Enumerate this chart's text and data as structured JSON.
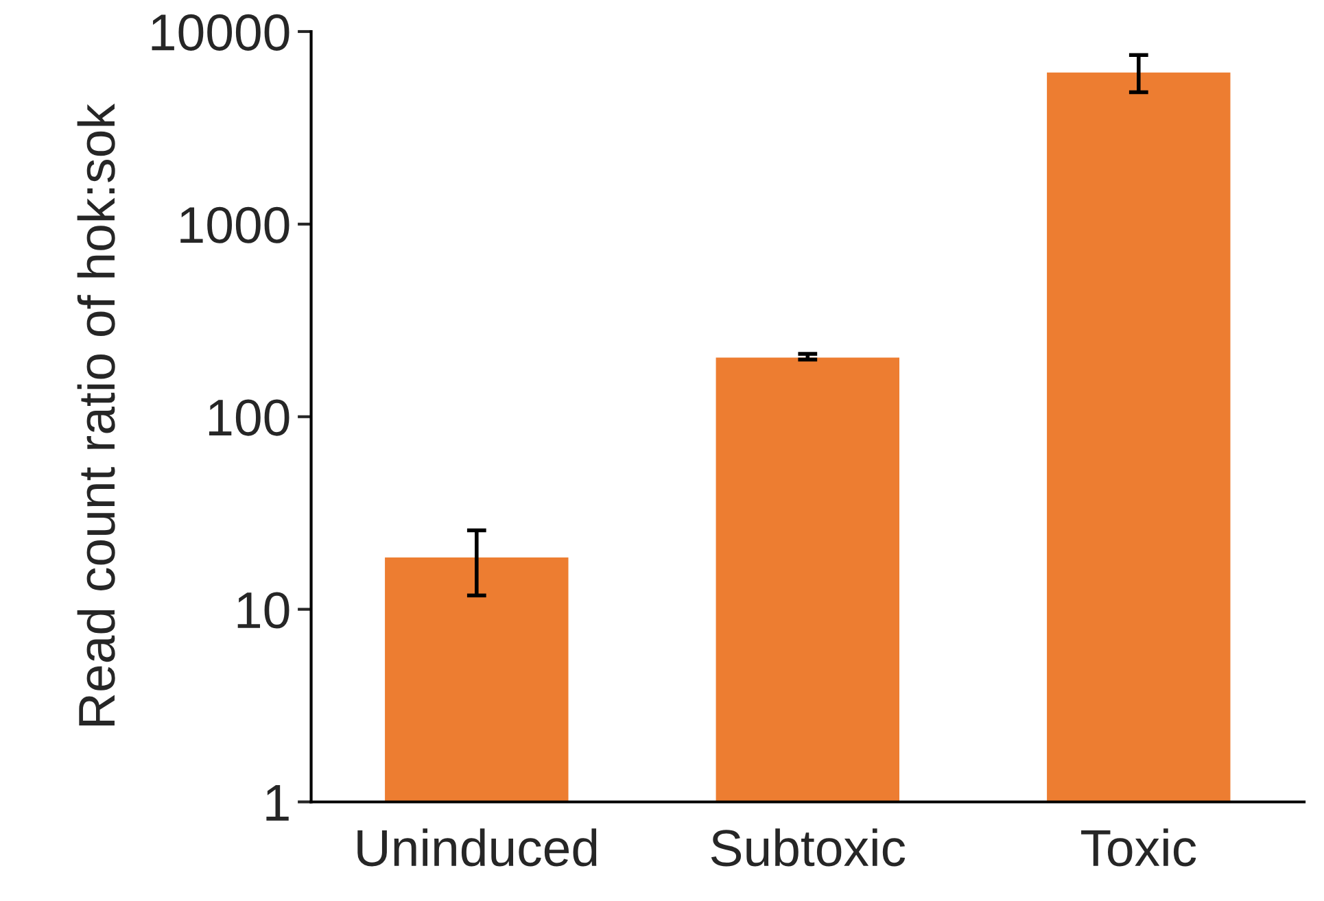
{
  "chart_data": {
    "type": "bar",
    "ylabel": "Read count ratio of hok:sok",
    "categories": [
      "Uninduced",
      "Subtoxic",
      "Toxic"
    ],
    "values": [
      18.8,
      205,
      6200
    ],
    "errors": [
      [
        11.8,
        25.7
      ],
      [
        198,
        212
      ],
      [
        4840,
        7550
      ]
    ],
    "color": "#ed7d31",
    "log": true,
    "ylim": [
      1,
      10000
    ],
    "yticks": [
      1,
      10,
      100,
      1000,
      10000
    ],
    "grid": false
  }
}
